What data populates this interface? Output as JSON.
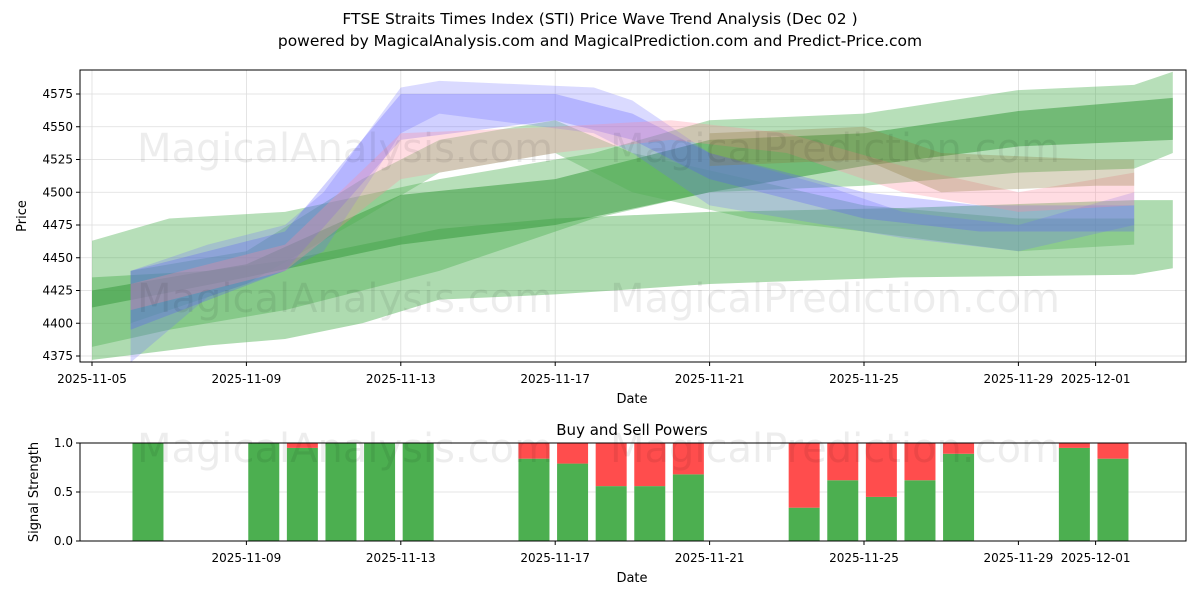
{
  "chart_data": [
    {
      "type": "area",
      "title": "FTSE Straits Times Index (STI) Price Wave Trend Analysis (Dec 02 )",
      "subtitle": "powered by MagicalAnalysis.com and MagicalPrediction.com and Predict-Price.com",
      "xlabel": "Date",
      "ylabel": "Price",
      "x_origin_date": "2025-11-05",
      "xlim_days": [
        -0.3,
        28.4
      ],
      "ylim": [
        4369,
        4594
      ],
      "x_ticks": [
        {
          "label": "2025-11-05",
          "day": 0
        },
        {
          "label": "2025-11-09",
          "day": 4
        },
        {
          "label": "2025-11-13",
          "day": 8
        },
        {
          "label": "2025-11-17",
          "day": 12
        },
        {
          "label": "2025-11-21",
          "day": 16
        },
        {
          "label": "2025-11-25",
          "day": 20
        },
        {
          "label": "2025-11-29",
          "day": 24
        },
        {
          "label": "2025-12-01",
          "day": 26
        }
      ],
      "y_ticks": [
        4375,
        4400,
        4425,
        4450,
        4475,
        4500,
        4525,
        4550,
        4575
      ],
      "grid": true,
      "bands_note": "each band point: [day offset, low, high]",
      "bands": [
        {
          "name": "green-wide-lower",
          "color": "#4caf50",
          "opacity": 0.45,
          "points": [
            [
              0,
              4372,
              4435
            ],
            [
              3,
              4383,
              4440
            ],
            [
              5,
              4388,
              4448
            ],
            [
              7,
              4400,
              4460
            ],
            [
              9,
              4418,
              4472
            ],
            [
              12,
              4422,
              4480
            ],
            [
              16,
              4430,
              4485
            ],
            [
              21,
              4435,
              4488
            ],
            [
              27,
              4437,
              4494
            ],
            [
              28,
              4442,
              4494
            ]
          ]
        },
        {
          "name": "green-wide-upper",
          "color": "#4caf50",
          "opacity": 0.4,
          "points": [
            [
              0,
              4382,
              4463
            ],
            [
              2,
              4395,
              4480
            ],
            [
              5,
              4410,
              4485
            ],
            [
              9,
              4440,
              4510
            ],
            [
              13,
              4480,
              4530
            ],
            [
              16,
              4500,
              4555
            ],
            [
              20,
              4505,
              4560
            ],
            [
              24,
              4515,
              4578
            ],
            [
              27,
              4518,
              4582
            ],
            [
              28,
              4530,
              4592
            ]
          ]
        },
        {
          "name": "green-mid",
          "color": "#3a9a3f",
          "opacity": 0.55,
          "points": [
            [
              0,
              4412,
              4425
            ],
            [
              4,
              4435,
              4445
            ],
            [
              8,
              4460,
              4498
            ],
            [
              12,
              4475,
              4510
            ],
            [
              16,
              4500,
              4540
            ],
            [
              20,
              4520,
              4545
            ],
            [
              24,
              4535,
              4562
            ],
            [
              28,
              4540,
              4572
            ]
          ]
        },
        {
          "name": "green-wave",
          "color": "#4caf50",
          "opacity": 0.35,
          "points": [
            [
              1,
              4400,
              4440
            ],
            [
              4,
              4430,
              4455
            ],
            [
              7,
              4480,
              4510
            ],
            [
              9,
              4515,
              4540
            ],
            [
              12,
              4530,
              4555
            ],
            [
              14,
              4500,
              4530
            ],
            [
              17,
              4480,
              4510
            ],
            [
              20,
              4470,
              4490
            ],
            [
              24,
              4455,
              4480
            ],
            [
              27,
              4460,
              4480
            ]
          ]
        },
        {
          "name": "blue-wave-1",
          "color": "#6b6bff",
          "opacity": 0.25,
          "points": [
            [
              1,
              4370,
              4440
            ],
            [
              3,
              4420,
              4460
            ],
            [
              5,
              4440,
              4475
            ],
            [
              6,
              4455,
              4500
            ],
            [
              8,
              4545,
              4580
            ],
            [
              9,
              4560,
              4585
            ],
            [
              13,
              4545,
              4580
            ],
            [
              14,
              4530,
              4570
            ],
            [
              16,
              4490,
              4530
            ],
            [
              19,
              4475,
              4505
            ],
            [
              21,
              4465,
              4485
            ],
            [
              24,
              4455,
              4475
            ],
            [
              27,
              4475,
              4500
            ]
          ]
        },
        {
          "name": "blue-wave-2",
          "color": "#5555ff",
          "opacity": 0.28,
          "points": [
            [
              1,
              4395,
              4440
            ],
            [
              5,
              4440,
              4470
            ],
            [
              8,
              4540,
              4575
            ],
            [
              12,
              4555,
              4575
            ],
            [
              14,
              4540,
              4560
            ],
            [
              16,
              4510,
              4530
            ],
            [
              20,
              4480,
              4500
            ],
            [
              23,
              4470,
              4490
            ],
            [
              27,
              4470,
              4490
            ]
          ]
        },
        {
          "name": "pink-wave",
          "color": "#ff8aa0",
          "opacity": 0.3,
          "points": [
            [
              1,
              4410,
              4430
            ],
            [
              5,
              4440,
              4460
            ],
            [
              8,
              4510,
              4545
            ],
            [
              12,
              4530,
              4550
            ],
            [
              15,
              4540,
              4555
            ],
            [
              18,
              4530,
              4545
            ],
            [
              21,
              4500,
              4520
            ],
            [
              24,
              4485,
              4500
            ],
            [
              27,
              4490,
              4515
            ]
          ]
        },
        {
          "name": "brown-wave",
          "color": "#8a7a3a",
          "opacity": 0.3,
          "points": [
            [
              16,
              4520,
              4545
            ],
            [
              20,
              4525,
              4550
            ],
            [
              22,
              4500,
              4530
            ],
            [
              26,
              4505,
              4525
            ],
            [
              27,
              4505,
              4525
            ]
          ]
        }
      ]
    },
    {
      "type": "bar",
      "title": "Buy and Sell Powers",
      "xlabel": "Date",
      "ylabel": "Signal Strength",
      "ylim": [
        0,
        1
      ],
      "y_ticks": [
        "0.0",
        "0.5",
        "1.0"
      ],
      "x_ticks": [
        {
          "label": "2025-11-09",
          "day": 4
        },
        {
          "label": "2025-11-13",
          "day": 8
        },
        {
          "label": "2025-11-17",
          "day": 12
        },
        {
          "label": "2025-11-21",
          "day": 16
        },
        {
          "label": "2025-11-25",
          "day": 20
        },
        {
          "label": "2025-11-29",
          "day": 24
        },
        {
          "label": "2025-12-01",
          "day": 26
        }
      ],
      "series": [
        {
          "name": "Buy",
          "color": "#4caf50"
        },
        {
          "name": "Sell",
          "color": "#ff4d4d"
        }
      ],
      "categories": [
        "2025-11-07",
        "2025-11-10",
        "2025-11-11",
        "2025-11-12",
        "2025-11-13",
        "2025-11-14",
        "2025-11-17",
        "2025-11-18",
        "2025-11-19",
        "2025-11-20",
        "2025-11-21",
        "2025-11-24",
        "2025-11-25",
        "2025-11-26",
        "2025-11-27",
        "2025-11-28",
        "2025-12-01",
        "2025-12-02"
      ],
      "days": [
        2,
        5,
        6,
        7,
        8,
        9,
        12,
        13,
        14,
        15,
        16,
        19,
        20,
        21,
        22,
        23,
        26,
        27
      ],
      "buy": [
        1.0,
        1.0,
        0.95,
        1.0,
        1.0,
        1.0,
        0.84,
        0.79,
        0.56,
        0.56,
        0.68,
        0.34,
        0.62,
        0.45,
        0.62,
        0.89,
        0.95,
        0.84
      ]
    }
  ],
  "watermarks": [
    "MagicalAnalysis.com",
    "MagicalPrediction.com"
  ]
}
